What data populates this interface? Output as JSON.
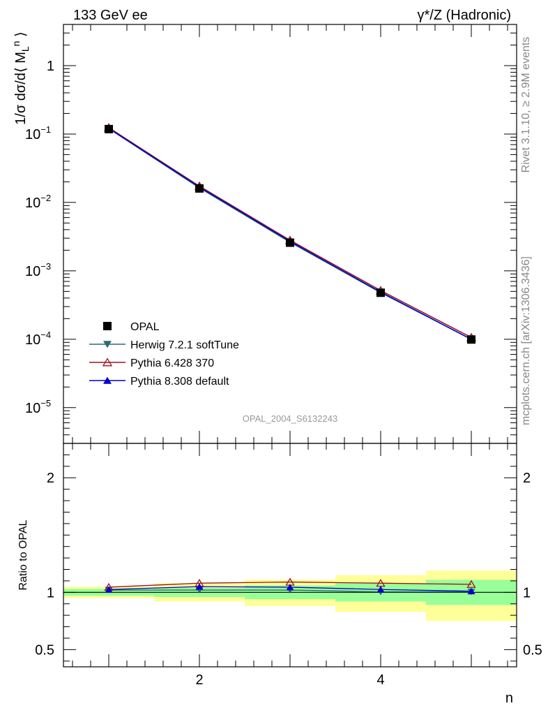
{
  "header": {
    "left_title": "133 GeV ee",
    "right_title": "γ*/Z (Hadronic)"
  },
  "side_labels": {
    "rivet": "Rivet 3.1.10, ≥ 2.9M events",
    "mcplots": "mcplots.cern.ch [arXiv:1306.3436]"
  },
  "watermark": "OPAL_2004_S6132243",
  "chart_data": [
    {
      "panel": "main",
      "type": "line",
      "ylabel": "1/σ dσ/d⟨ M_L^n ⟩",
      "yscale": "log",
      "xlim": [
        0.5,
        5.5
      ],
      "ylim": [
        3e-06,
        4
      ],
      "y_ticks": [
        {
          "value": 1,
          "label": "1"
        },
        {
          "value": 0.1,
          "label": "10",
          "exp": "−1"
        },
        {
          "value": 0.01,
          "label": "10",
          "exp": "−2"
        },
        {
          "value": 0.001,
          "label": "10",
          "exp": "−3"
        },
        {
          "value": 0.0001,
          "label": "10",
          "exp": "−4"
        },
        {
          "value": 1e-05,
          "label": "10",
          "exp": "−5"
        }
      ],
      "legend_position": "lower-left",
      "x": [
        1,
        2,
        3,
        4,
        5
      ],
      "series": [
        {
          "name": "OPAL",
          "color": "#000000",
          "marker": "square",
          "values": [
            0.118,
            0.016,
            0.00258,
            0.000478,
            9.9e-05
          ]
        },
        {
          "name": "Herwig 7.2.1 softTune",
          "color": "#2a6a73",
          "marker": "triangle-down",
          "values": [
            0.12,
            0.0163,
            0.00262,
            0.00048,
            9.95e-05
          ]
        },
        {
          "name": "Pythia 6.428 370",
          "color": "#9b1020",
          "marker": "triangle-up-open",
          "values": [
            0.124,
            0.0173,
            0.0028,
            0.000515,
            0.000106
          ]
        },
        {
          "name": "Pythia 8.308 default",
          "color": "#0000cc",
          "marker": "triangle-up",
          "values": [
            0.121,
            0.0168,
            0.0027,
            0.00049,
            9.98e-05
          ]
        }
      ]
    },
    {
      "panel": "ratio",
      "type": "line",
      "ylabel": "Ratio to OPAL",
      "xlabel": "n",
      "ylim": [
        0.35,
        2.3
      ],
      "y_ticks": [
        {
          "value": 0.5,
          "label": "0.5"
        },
        {
          "value": 1,
          "label": "1"
        },
        {
          "value": 2,
          "label": "2"
        }
      ],
      "x_ticks": [
        {
          "value": 2,
          "label": "2"
        },
        {
          "value": 4,
          "label": "4"
        }
      ],
      "x": [
        1,
        2,
        3,
        4,
        5
      ],
      "bands": {
        "bin_edges": [
          0.5,
          1.5,
          2.5,
          3.5,
          4.5,
          5.5
        ],
        "stat_low": [
          0.97,
          0.96,
          0.94,
          0.92,
          0.89
        ],
        "stat_high": [
          1.03,
          1.04,
          1.06,
          1.08,
          1.11
        ],
        "total_low": [
          0.95,
          0.92,
          0.88,
          0.83,
          0.75
        ],
        "total_high": [
          1.05,
          1.08,
          1.11,
          1.15,
          1.19
        ],
        "stat_color": "#99ff99",
        "total_color": "#ffff99"
      },
      "series": [
        {
          "name": "OPAL",
          "color": "#000000",
          "marker": "square",
          "values": [
            1.0,
            1.0,
            1.0,
            1.0,
            1.0
          ]
        },
        {
          "name": "Herwig 7.2.1 softTune",
          "color": "#2a6a73",
          "marker": "triangle-down",
          "values": [
            1.02,
            1.02,
            1.02,
            1.005,
            1.005
          ]
        },
        {
          "name": "Pythia 6.428 370",
          "color": "#9b1020",
          "marker": "triangle-up-open",
          "values": [
            1.045,
            1.08,
            1.09,
            1.08,
            1.07
          ]
        },
        {
          "name": "Pythia 8.308 default",
          "color": "#0000cc",
          "marker": "triangle-up",
          "values": [
            1.025,
            1.05,
            1.045,
            1.025,
            1.01
          ]
        }
      ]
    }
  ]
}
